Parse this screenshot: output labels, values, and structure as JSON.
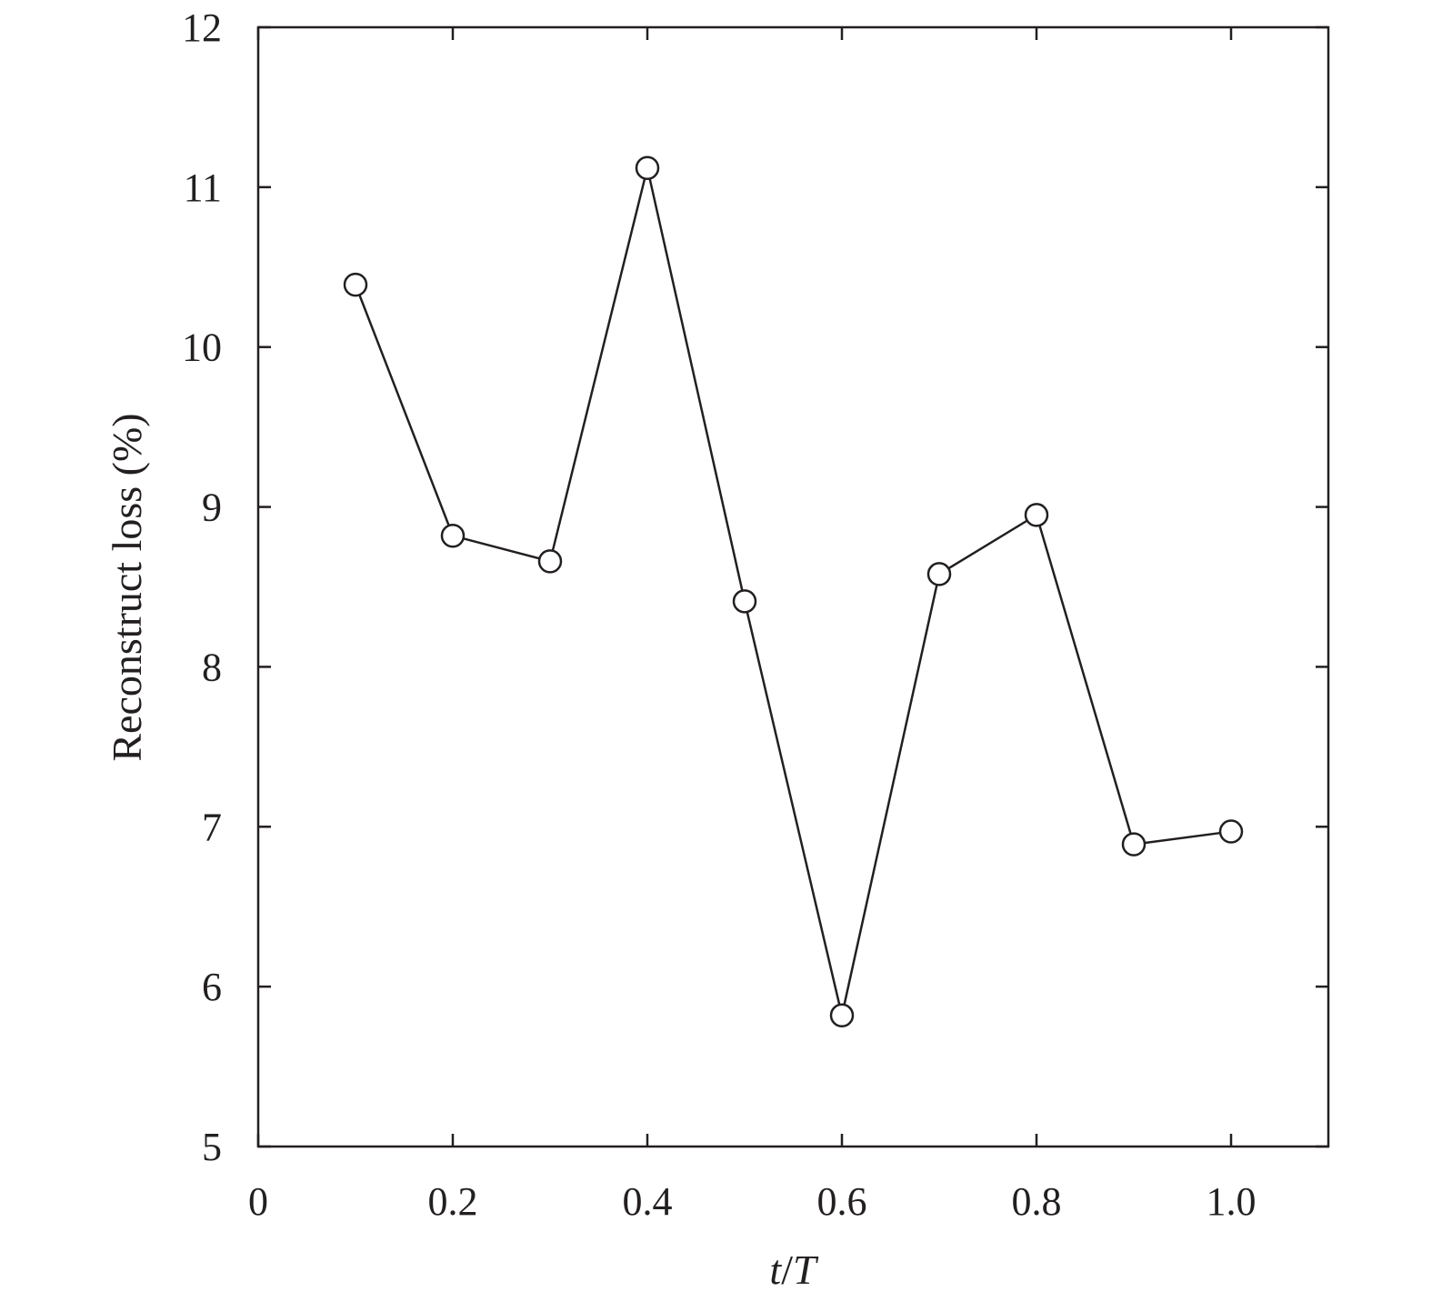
{
  "chart_data": {
    "type": "line",
    "title": "",
    "xlabel_italic_parts": [
      "t",
      "/",
      "T"
    ],
    "ylabel": "Reconstruct loss (%)",
    "xlim": [
      0,
      1.1
    ],
    "ylim": [
      5,
      12
    ],
    "xticks": [
      0,
      0.2,
      0.4,
      0.6,
      0.8,
      1.0
    ],
    "xtick_labels": [
      "0",
      "0.2",
      "0.4",
      "0.6",
      "0.8",
      "1.0"
    ],
    "yticks": [
      5,
      6,
      7,
      8,
      9,
      10,
      11,
      12
    ],
    "ytick_labels": [
      "5",
      "6",
      "7",
      "8",
      "9",
      "10",
      "11",
      "12"
    ],
    "grid": false,
    "marker": "open-circle",
    "colors": {
      "line": "#231f20",
      "axis": "#231f20",
      "background": "#ffffff"
    },
    "series": [
      {
        "x": [
          0.1,
          0.2,
          0.3,
          0.4,
          0.5,
          0.6,
          0.7,
          0.8,
          0.9,
          1.0
        ],
        "y": [
          10.39,
          8.82,
          8.66,
          11.12,
          8.41,
          5.82,
          8.58,
          8.95,
          6.89,
          6.97
        ]
      }
    ]
  }
}
